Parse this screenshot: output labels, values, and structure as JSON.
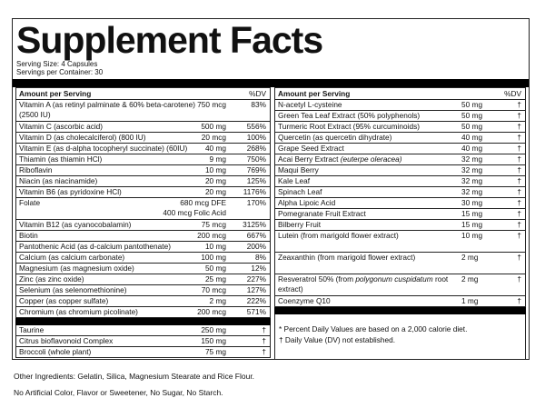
{
  "title": "Supplement Facts",
  "serving_size": "Serving Size: 4 Capsules",
  "servings_per_container": "Servings per Container: 30",
  "header": {
    "amount": "Amount per Serving",
    "dv": "%DV"
  },
  "left_rows": [
    {
      "name": "Vitamin A (as retinyl palminate & 60% beta-carotene)(2500 IU)",
      "amount": "750 mcg",
      "dv": "83%",
      "tall": true
    },
    {
      "name": "Vitamin C (ascorbic acid)",
      "amount": "500 mg",
      "dv": "556%"
    },
    {
      "name": "Vitamin D (as cholecalciferol) (800 IU)",
      "amount": "20 mcg",
      "dv": "100%"
    },
    {
      "name": "Vitamin E (as d-alpha tocopheryl succinate) (60IU)",
      "amount": "40 mg",
      "dv": "268%"
    },
    {
      "name": "Thiamin (as thiamin HCl)",
      "amount": "9 mg",
      "dv": "750%"
    },
    {
      "name": "Riboflavin",
      "amount": "10 mg",
      "dv": "769%"
    },
    {
      "name": "Niacin (as niacinamide)",
      "amount": "20 mg",
      "dv": "125%"
    },
    {
      "name": "Vitamin B6 (as pyridoxine HCl)",
      "amount": "20 mg",
      "dv": "1176%"
    },
    {
      "name": "Folate",
      "amount": "680 mcg DFE",
      "amount2": "400 mcg Folic Acid",
      "dv": "170%",
      "tall": true
    },
    {
      "name": "Vitamin B12 (as cyanocobalamin)",
      "amount": "75 mcg",
      "dv": "3125%"
    },
    {
      "name": "Biotin",
      "amount": "200 mcg",
      "dv": "667%"
    },
    {
      "name": "Pantothenic Acid (as d-calcium pantothenate)",
      "amount": "10 mg",
      "dv": "200%"
    },
    {
      "name": "Calcium (as calcium carbonate)",
      "amount": "100 mg",
      "dv": "8%"
    },
    {
      "name": "Magnesium (as magnesium oxide)",
      "amount": "50 mg",
      "dv": "12%"
    },
    {
      "name": "Zinc (as zinc oxide)",
      "amount": "25 mg",
      "dv": "227%"
    },
    {
      "name": "Selenium (as selenomethionine)",
      "amount": "70 mcg",
      "dv": "127%"
    },
    {
      "name": "Copper (as copper sulfate)",
      "amount": "2 mg",
      "dv": "222%"
    },
    {
      "name": "Chromium (as chromium picolinate)",
      "amount": "200 mcg",
      "dv": "571%"
    }
  ],
  "left_rows_2": [
    {
      "name": "Taurine",
      "amount": "250 mg",
      "dv": "†"
    },
    {
      "name": "Citrus bioflavonoid Complex",
      "amount": "150 mg",
      "dv": "†"
    },
    {
      "name": "Broccoli (whole plant)",
      "amount": "75 mg",
      "dv": "†"
    }
  ],
  "right_rows": [
    {
      "name": "N-acetyl L-cysteine",
      "amount": "50 mg",
      "dv": "†"
    },
    {
      "name": "Green Tea Leaf Extract (50% polyphenols)",
      "amount": "50 mg",
      "dv": "†"
    },
    {
      "name": "Turmeric Root Extract (95% curcuminoids)",
      "amount": "50 mg",
      "dv": "†"
    },
    {
      "name": "Quercetin (as quercetin dihydrate)",
      "amount": "40 mg",
      "dv": "†"
    },
    {
      "name": "Grape Seed Extract",
      "amount": "40 mg",
      "dv": "†"
    },
    {
      "name": "Acai Berry Extract ",
      "italic": "(euterpe oleracea)",
      "amount": "32 mg",
      "dv": "†"
    },
    {
      "name": "Maqui Berry",
      "amount": "32 mg",
      "dv": "†"
    },
    {
      "name": "Kale Leaf",
      "amount": "32 mg",
      "dv": "†"
    },
    {
      "name": "Spinach Leaf",
      "amount": "32 mg",
      "dv": "†"
    },
    {
      "name": "Alpha Lipoic Acid",
      "amount": "30 mg",
      "dv": "†"
    },
    {
      "name": "Pomegranate Fruit Extract",
      "amount": "15 mg",
      "dv": "†"
    },
    {
      "name": "Bilberry Fruit",
      "amount": "15 mg",
      "dv": "†"
    },
    {
      "name": "Lutein (from marigold flower extract)",
      "amount": "10 mg",
      "dv": "†",
      "tall": true
    },
    {
      "name": "Zeaxanthin (from marigold flower extract)",
      "amount": "2 mg",
      "dv": "†",
      "tall": true
    },
    {
      "name": "Resveratrol 50% (from ",
      "italic": "polygonum cuspidatum",
      "after": " root extract)",
      "amount": "2 mg",
      "dv": "†",
      "tall": true
    },
    {
      "name": "Coenzyme Q10",
      "amount": "1 mg",
      "dv": "†"
    }
  ],
  "footnotes": [
    "* Percent Daily Values are based on a 2,000 calorie diet.",
    "† Daily Value (DV) not established."
  ],
  "other_ingredients": "Other Ingredients: Gelatin, Silica, Magnesium Stearate and Rice Flour.",
  "claims": "No Artificial Color, Flavor or Sweetener, No Sugar, No Starch."
}
